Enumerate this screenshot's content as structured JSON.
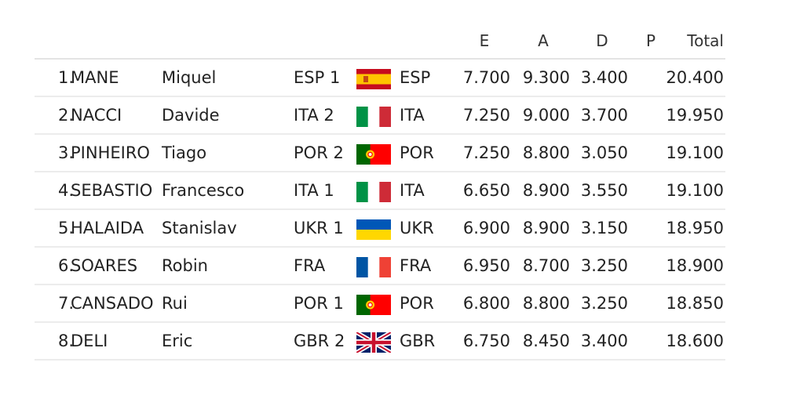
{
  "headers": {
    "e": "E",
    "a": "A",
    "d": "D",
    "p": "P",
    "total": "Total"
  },
  "rows": [
    {
      "rank": "1.",
      "last": "MANE",
      "first": "Miquel",
      "team": "ESP 1",
      "flag": "spain-flag-icon",
      "nation": "ESP",
      "e": "7.700",
      "a": "9.300",
      "d": "3.400",
      "p": "",
      "total": "20.400"
    },
    {
      "rank": "2.",
      "last": "NACCI",
      "first": "Davide",
      "team": "ITA 2",
      "flag": "italy-flag-icon",
      "nation": "ITA",
      "e": "7.250",
      "a": "9.000",
      "d": "3.700",
      "p": "",
      "total": "19.950"
    },
    {
      "rank": "3.",
      "last": "PINHEIRO",
      "first": "Tiago",
      "team": "POR 2",
      "flag": "portugal-flag-icon",
      "nation": "POR",
      "e": "7.250",
      "a": "8.800",
      "d": "3.050",
      "p": "",
      "total": "19.100"
    },
    {
      "rank": "4.",
      "last": "SEBASTIO",
      "first": "Francesco",
      "team": "ITA 1",
      "flag": "italy-flag-icon",
      "nation": "ITA",
      "e": "6.650",
      "a": "8.900",
      "d": "3.550",
      "p": "",
      "total": "19.100"
    },
    {
      "rank": "5.",
      "last": "HALAIDA",
      "first": "Stanislav",
      "team": "UKR 1",
      "flag": "ukraine-flag-icon",
      "nation": "UKR",
      "e": "6.900",
      "a": "8.900",
      "d": "3.150",
      "p": "",
      "total": "18.950"
    },
    {
      "rank": "6.",
      "last": "SOARES",
      "first": "Robin",
      "team": "FRA",
      "flag": "france-flag-icon",
      "nation": "FRA",
      "e": "6.950",
      "a": "8.700",
      "d": "3.250",
      "p": "",
      "total": "18.900"
    },
    {
      "rank": "7.",
      "last": "CANSADO",
      "first": "Rui",
      "team": "POR 1",
      "flag": "portugal-flag-icon",
      "nation": "POR",
      "e": "6.800",
      "a": "8.800",
      "d": "3.250",
      "p": "",
      "total": "18.850"
    },
    {
      "rank": "8.",
      "last": "DELI",
      "first": "Eric",
      "team": "GBR 2",
      "flag": "uk-flag-icon",
      "nation": "GBR",
      "e": "6.750",
      "a": "8.450",
      "d": "3.400",
      "p": "",
      "total": "18.600"
    }
  ]
}
